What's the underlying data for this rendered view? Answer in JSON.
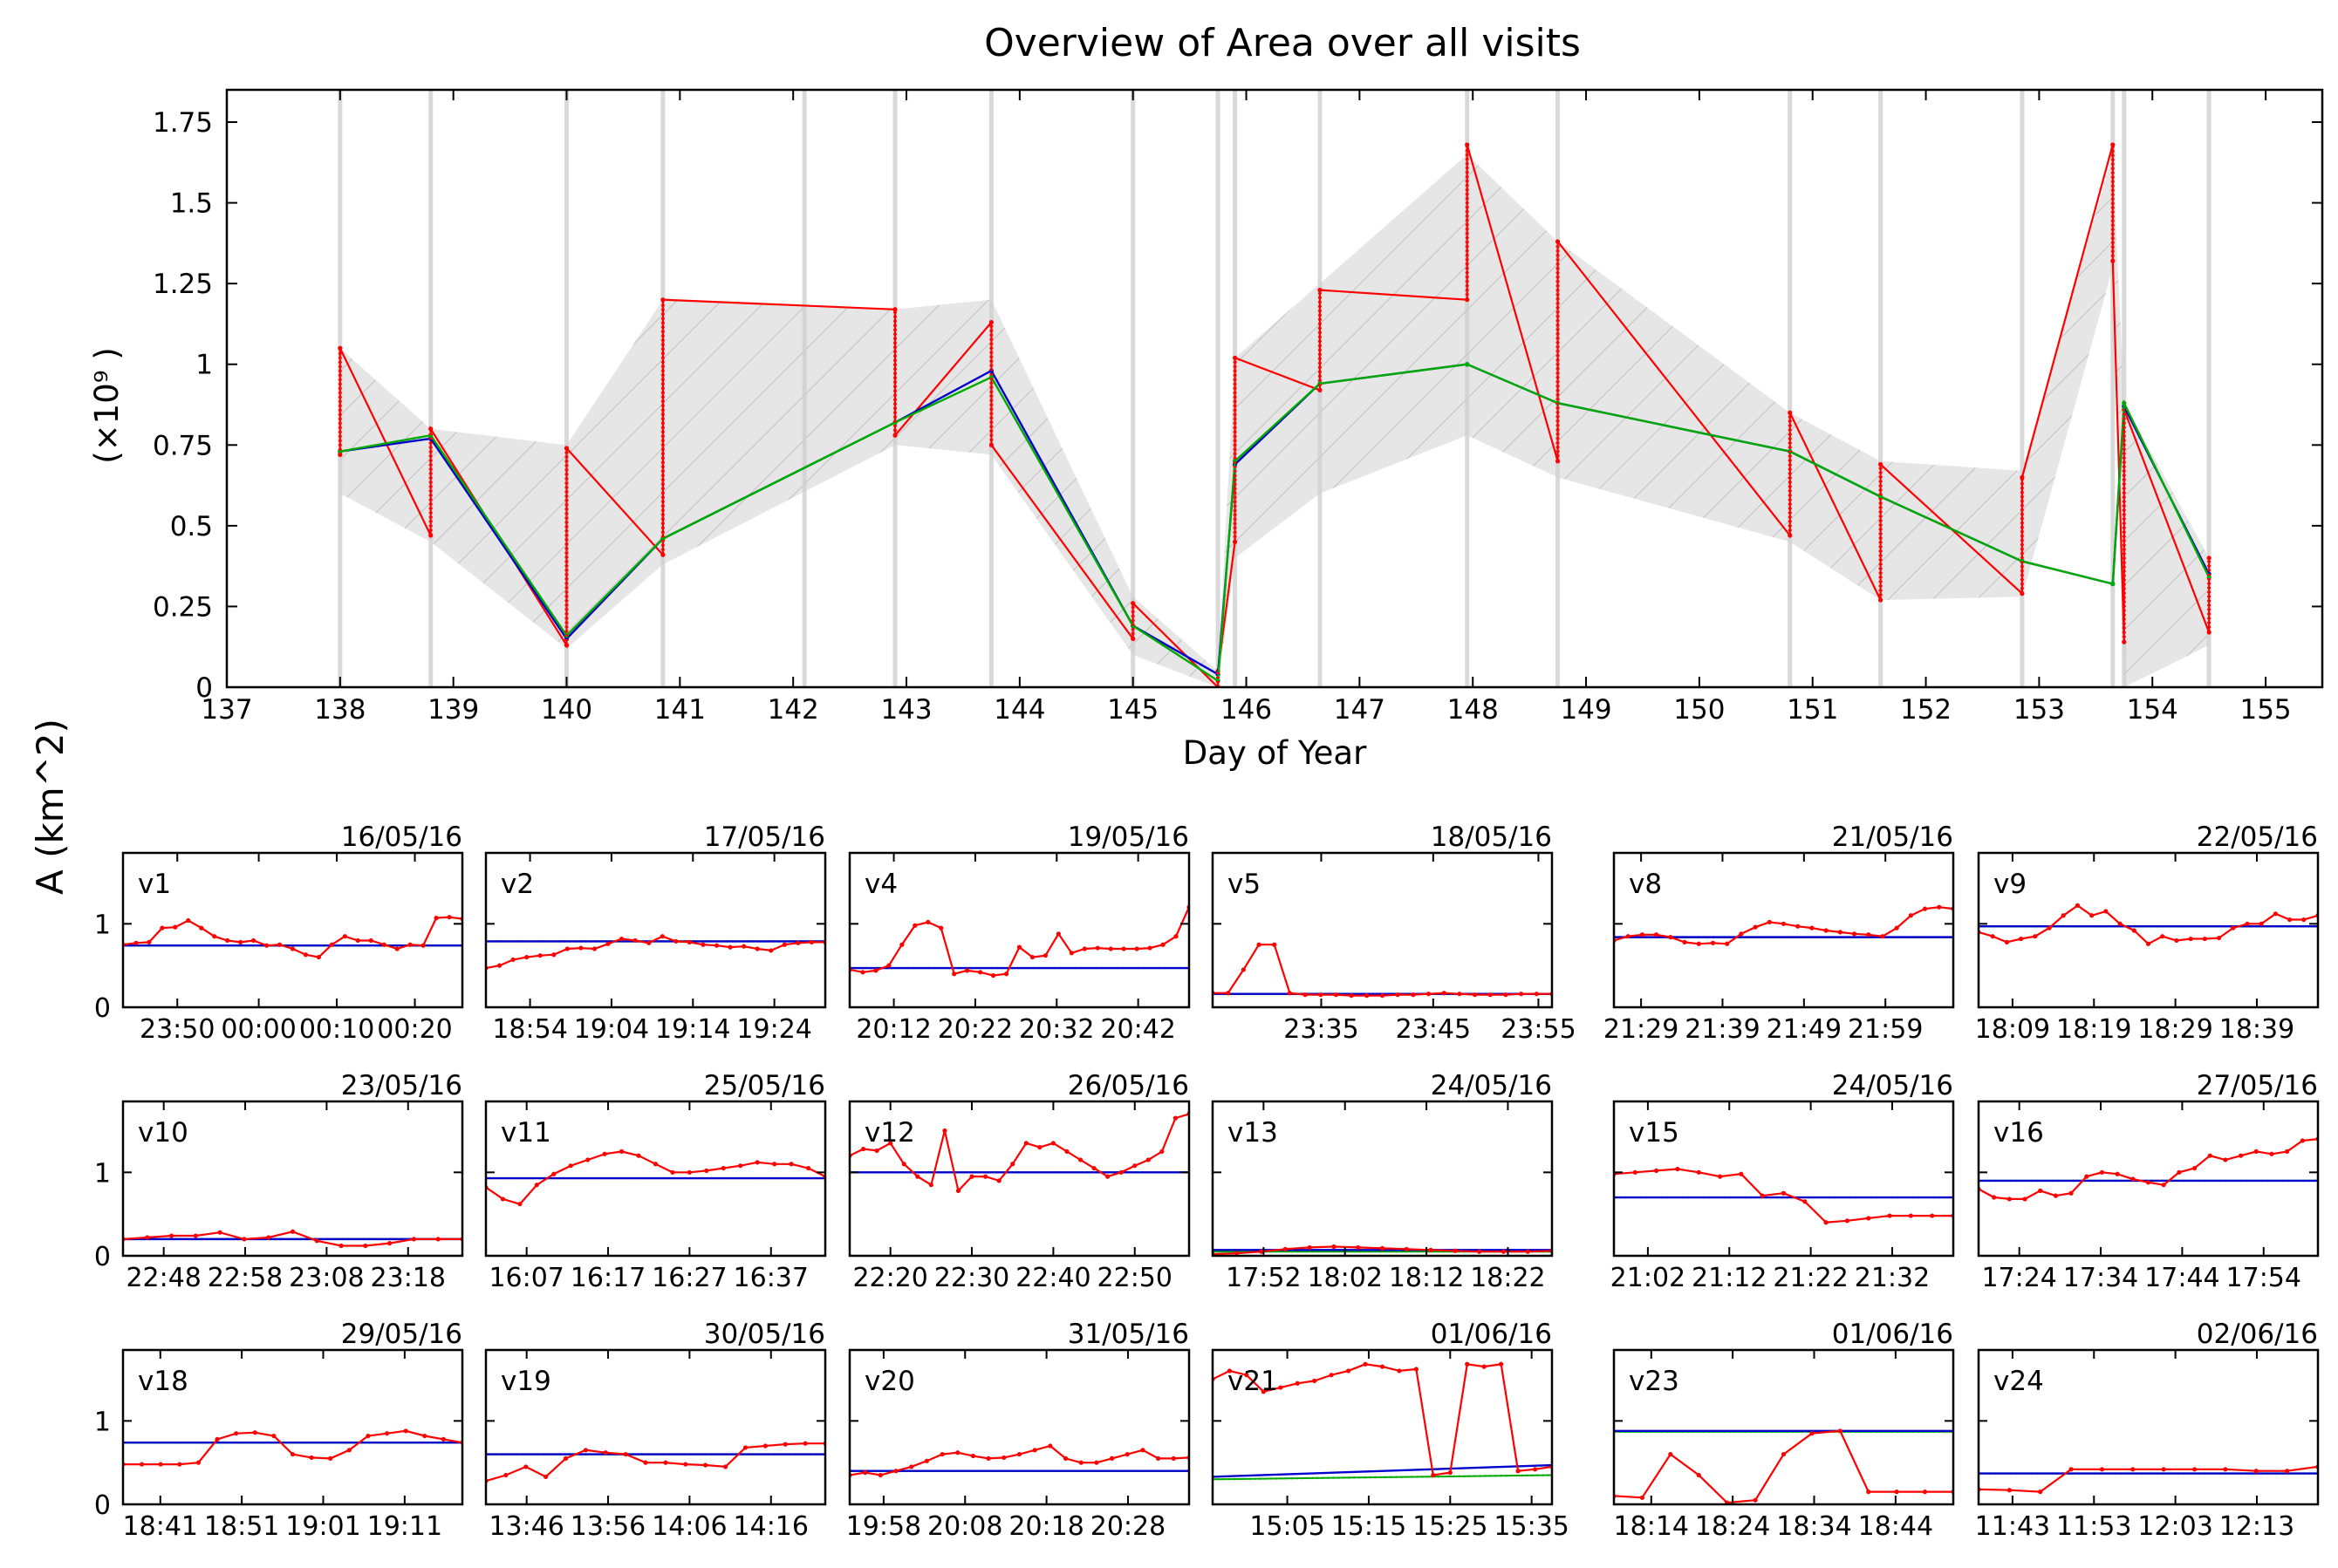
{
  "chart_data": [
    {
      "type": "line",
      "title": "Overview of Area over all visits",
      "xlabel": "Day of Year",
      "ylabel": "A (km^2)",
      "y_multiplier_label": "(×10⁹ )",
      "xlim": [
        137,
        155.5
      ],
      "ylim": [
        0,
        1.85
      ],
      "x_ticks": [
        137,
        138,
        139,
        140,
        141,
        142,
        143,
        144,
        145,
        146,
        147,
        148,
        149,
        150,
        151,
        152,
        153,
        154,
        155
      ],
      "y_ticks": [
        0,
        0.25,
        0.5,
        0.75,
        1,
        1.25,
        1.5,
        1.75
      ],
      "y_tick_labels": [
        "0",
        "0.25",
        "0.5",
        "0.75",
        "1",
        "1.25",
        "1.5",
        "1.75"
      ],
      "visit_lines": [
        138.0,
        138.8,
        140.0,
        140.85,
        142.1,
        142.9,
        143.75,
        145.0,
        145.75,
        145.9,
        146.65,
        147.95,
        148.75,
        150.8,
        151.6,
        152.85,
        153.65,
        153.75,
        154.5
      ],
      "colors": {
        "observed": "#ff0000",
        "mean": "#0000cc",
        "model": "#00aa00",
        "envelope": "#e6e6e6",
        "visit_line": "#d0d0d0"
      },
      "envelope": {
        "x": [
          138.0,
          138.8,
          140.0,
          140.85,
          142.9,
          143.75,
          145.0,
          145.75,
          145.9,
          146.65,
          147.95,
          148.75,
          150.8,
          151.6,
          152.85,
          153.65,
          153.75,
          154.5
        ],
        "upper": [
          1.05,
          0.8,
          0.75,
          1.2,
          1.17,
          1.2,
          0.28,
          0.05,
          1.02,
          1.25,
          1.65,
          1.38,
          0.85,
          0.7,
          0.67,
          1.65,
          0.88,
          0.4
        ],
        "lower": [
          0.6,
          0.45,
          0.12,
          0.38,
          0.75,
          0.72,
          0.1,
          0.0,
          0.4,
          0.6,
          0.78,
          0.65,
          0.45,
          0.27,
          0.28,
          1.3,
          0.0,
          0.13
        ]
      },
      "series": [
        {
          "key": "observed",
          "x": [
            138.0,
            138.0,
            138.8,
            138.8,
            140.0,
            140.0,
            140.85,
            140.85,
            142.9,
            142.9,
            143.75,
            143.75,
            145.0,
            145.0,
            145.75,
            145.75,
            145.9,
            145.9,
            146.65,
            146.65,
            147.95,
            147.95,
            148.75,
            148.75,
            150.8,
            150.8,
            151.6,
            151.6,
            152.85,
            152.85,
            153.65,
            153.65,
            153.75,
            153.75,
            154.5,
            154.5
          ],
          "y": [
            0.72,
            1.05,
            0.47,
            0.8,
            0.13,
            0.74,
            0.41,
            1.2,
            1.17,
            0.78,
            1.13,
            0.75,
            0.15,
            0.26,
            0.0,
            0.05,
            0.45,
            1.02,
            0.92,
            1.23,
            1.2,
            1.68,
            0.7,
            1.38,
            0.47,
            0.85,
            0.27,
            0.69,
            0.29,
            0.65,
            1.68,
            1.32,
            0.14,
            0.86,
            0.17,
            0.4
          ]
        },
        {
          "key": "mean",
          "x": [
            138.0,
            138.8,
            140.0,
            140.85,
            142.9,
            143.75,
            145.0,
            145.75,
            145.9,
            146.65,
            147.95,
            148.75,
            150.8,
            151.6,
            152.85,
            153.65,
            153.75,
            154.5
          ],
          "y": [
            0.73,
            0.77,
            0.15,
            0.46,
            0.82,
            0.98,
            0.19,
            0.04,
            0.69,
            0.94,
            1.0,
            0.88,
            0.73,
            0.59,
            0.39,
            0.32,
            0.87,
            0.35
          ]
        },
        {
          "key": "model",
          "x": [
            138.0,
            138.8,
            140.0,
            140.85,
            142.9,
            143.75,
            145.0,
            145.75,
            145.9,
            146.65,
            147.95,
            148.75,
            150.8,
            151.6,
            152.85,
            153.65,
            153.75,
            154.5
          ],
          "y": [
            0.73,
            0.78,
            0.16,
            0.46,
            0.82,
            0.96,
            0.19,
            0.02,
            0.7,
            0.94,
            1.0,
            0.88,
            0.73,
            0.59,
            0.39,
            0.32,
            0.88,
            0.34
          ]
        }
      ]
    },
    {
      "type": "line",
      "panels": [
        {
          "label": "v1",
          "date": "16/05/16",
          "ticks": [
            "23:50",
            "00:00",
            "00:10",
            "00:20"
          ],
          "tick_pos": [
            0.16,
            0.4,
            0.63,
            0.86
          ],
          "mean": 0.74,
          "model": 0.74,
          "obs": [
            0.75,
            0.77,
            0.78,
            0.95,
            0.96,
            1.04,
            0.95,
            0.85,
            0.8,
            0.78,
            0.8,
            0.74,
            0.75,
            0.7,
            0.63,
            0.6,
            0.75,
            0.85,
            0.8,
            0.8,
            0.75,
            0.7,
            0.75,
            0.74,
            1.07,
            1.08,
            1.06
          ]
        },
        {
          "label": "v2",
          "date": "17/05/16",
          "ticks": [
            "18:54",
            "19:04",
            "19:14",
            "19:24"
          ],
          "tick_pos": [
            0.13,
            0.37,
            0.61,
            0.85
          ],
          "mean": 0.79,
          "model": 0.79,
          "obs": [
            0.47,
            0.5,
            0.57,
            0.6,
            0.62,
            0.63,
            0.7,
            0.71,
            0.7,
            0.76,
            0.82,
            0.8,
            0.77,
            0.85,
            0.79,
            0.78,
            0.75,
            0.74,
            0.72,
            0.73,
            0.7,
            0.68,
            0.75,
            0.77,
            0.78,
            0.78
          ]
        },
        {
          "label": "v4",
          "date": "19/05/16",
          "ticks": [
            "20:12",
            "20:22",
            "20:32",
            "20:42"
          ],
          "tick_pos": [
            0.13,
            0.37,
            0.61,
            0.85
          ],
          "mean": 0.47,
          "model": 0.47,
          "obs": [
            0.45,
            0.42,
            0.44,
            0.5,
            0.75,
            0.98,
            1.02,
            0.95,
            0.4,
            0.44,
            0.42,
            0.38,
            0.4,
            0.72,
            0.6,
            0.62,
            0.88,
            0.65,
            0.7,
            0.71,
            0.7,
            0.7,
            0.7,
            0.71,
            0.75,
            0.85,
            1.2
          ]
        },
        {
          "label": "v5",
          "date": "18/05/16",
          "ticks": [
            "23:35",
            "23:45",
            "23:55"
          ],
          "tick_pos": [
            0.32,
            0.65,
            0.96
          ],
          "mean": 0.16,
          "model": 0.16,
          "obs": [
            0.17,
            0.17,
            0.45,
            0.75,
            0.75,
            0.17,
            0.15,
            0.15,
            0.15,
            0.14,
            0.14,
            0.14,
            0.15,
            0.15,
            0.16,
            0.17,
            0.16,
            0.15,
            0.15,
            0.15,
            0.16,
            0.16,
            0.16
          ]
        },
        {
          "label": "v8",
          "date": "21/05/16",
          "ticks": [
            "21:29",
            "21:39",
            "21:49",
            "21:59"
          ],
          "tick_pos": [
            0.08,
            0.32,
            0.56,
            0.8
          ],
          "mean": 0.84,
          "model": 0.84,
          "obs": [
            0.8,
            0.85,
            0.87,
            0.87,
            0.84,
            0.78,
            0.76,
            0.77,
            0.76,
            0.88,
            0.96,
            1.02,
            1.0,
            0.97,
            0.95,
            0.92,
            0.9,
            0.88,
            0.87,
            0.85,
            0.95,
            1.1,
            1.18,
            1.2,
            1.18
          ]
        },
        {
          "label": "v9",
          "date": "22/05/16",
          "ticks": [
            "18:09",
            "18:19",
            "18:29",
            "18:39"
          ],
          "tick_pos": [
            0.1,
            0.34,
            0.58,
            0.82
          ],
          "mean": 0.97,
          "model": 0.97,
          "obs": [
            0.9,
            0.85,
            0.78,
            0.82,
            0.85,
            0.95,
            1.1,
            1.22,
            1.1,
            1.15,
            1.0,
            0.92,
            0.76,
            0.85,
            0.8,
            0.82,
            0.82,
            0.83,
            0.95,
            1.0,
            1.0,
            1.12,
            1.05,
            1.05,
            1.1
          ]
        },
        {
          "label": "v10",
          "date": "23/05/16",
          "ticks": [
            "22:48",
            "22:58",
            "23:08",
            "23:18"
          ],
          "tick_pos": [
            0.12,
            0.36,
            0.6,
            0.84
          ],
          "mean": 0.2,
          "model": 0.2,
          "obs": [
            0.2,
            0.22,
            0.24,
            0.24,
            0.28,
            0.2,
            0.22,
            0.29,
            0.18,
            0.12,
            0.12,
            0.15,
            0.2,
            0.2,
            0.2
          ]
        },
        {
          "label": "v11",
          "date": "25/05/16",
          "ticks": [
            "16:07",
            "16:17",
            "16:27",
            "16:37"
          ],
          "tick_pos": [
            0.12,
            0.36,
            0.6,
            0.84
          ],
          "mean": 0.93,
          "model": 0.93,
          "obs": [
            0.82,
            0.68,
            0.62,
            0.85,
            0.98,
            1.08,
            1.15,
            1.22,
            1.25,
            1.2,
            1.1,
            1.0,
            1.0,
            1.02,
            1.05,
            1.08,
            1.12,
            1.1,
            1.1,
            1.05,
            0.95
          ]
        },
        {
          "label": "v12",
          "date": "26/05/16",
          "ticks": [
            "22:20",
            "22:30",
            "22:40",
            "22:50"
          ],
          "tick_pos": [
            0.12,
            0.36,
            0.6,
            0.84
          ],
          "mean": 1.0,
          "model": 1.0,
          "obs": [
            1.2,
            1.28,
            1.26,
            1.35,
            1.1,
            0.95,
            0.85,
            1.5,
            0.78,
            0.95,
            0.95,
            0.9,
            1.1,
            1.35,
            1.3,
            1.35,
            1.25,
            1.15,
            1.05,
            0.95,
            1.0,
            1.08,
            1.15,
            1.25,
            1.65,
            1.7
          ]
        },
        {
          "label": "v13",
          "date": "24/05/16",
          "ticks": [
            "17:52",
            "18:02",
            "18:12",
            "18:22"
          ],
          "tick_pos": [
            0.15,
            0.39,
            0.63,
            0.87
          ],
          "mean": 0.07,
          "model": 0.05,
          "obs": [
            0.02,
            0.03,
            0.05,
            0.08,
            0.1,
            0.11,
            0.1,
            0.09,
            0.08,
            0.07,
            0.06,
            0.05,
            0.05,
            0.05,
            0.06
          ]
        },
        {
          "label": "v15",
          "date": "24/05/16",
          "ticks": [
            "21:02",
            "21:12",
            "21:22",
            "21:32"
          ],
          "tick_pos": [
            0.1,
            0.34,
            0.58,
            0.82
          ],
          "mean": 0.7,
          "model": 0.7,
          "obs": [
            0.98,
            1.0,
            1.02,
            1.04,
            1.0,
            0.95,
            0.98,
            0.72,
            0.75,
            0.65,
            0.4,
            0.42,
            0.45,
            0.48,
            0.48,
            0.48,
            0.48
          ]
        },
        {
          "label": "v16",
          "date": "27/05/16",
          "ticks": [
            "17:24",
            "17:34",
            "17:44",
            "17:54"
          ],
          "tick_pos": [
            0.12,
            0.36,
            0.6,
            0.84
          ],
          "mean": 0.9,
          "model": 0.9,
          "obs": [
            0.8,
            0.7,
            0.68,
            0.68,
            0.78,
            0.72,
            0.75,
            0.95,
            1.0,
            0.98,
            0.92,
            0.88,
            0.85,
            1.0,
            1.05,
            1.2,
            1.15,
            1.2,
            1.25,
            1.22,
            1.25,
            1.38,
            1.4
          ]
        },
        {
          "label": "v18",
          "date": "29/05/16",
          "ticks": [
            "18:41",
            "18:51",
            "19:01",
            "19:11"
          ],
          "tick_pos": [
            0.11,
            0.35,
            0.59,
            0.83
          ],
          "mean": 0.74,
          "model": 0.74,
          "obs": [
            0.48,
            0.48,
            0.48,
            0.48,
            0.5,
            0.78,
            0.85,
            0.86,
            0.82,
            0.6,
            0.56,
            0.55,
            0.65,
            0.82,
            0.85,
            0.88,
            0.82,
            0.78,
            0.74
          ]
        },
        {
          "label": "v19",
          "date": "30/05/16",
          "ticks": [
            "13:46",
            "13:56",
            "14:06",
            "14:16"
          ],
          "tick_pos": [
            0.12,
            0.36,
            0.6,
            0.84
          ],
          "mean": 0.6,
          "model": 0.6,
          "obs": [
            0.28,
            0.35,
            0.45,
            0.33,
            0.55,
            0.65,
            0.62,
            0.6,
            0.5,
            0.5,
            0.48,
            0.47,
            0.45,
            0.68,
            0.7,
            0.72,
            0.73,
            0.73
          ]
        },
        {
          "label": "v20",
          "date": "31/05/16",
          "ticks": [
            "19:58",
            "20:08",
            "20:18",
            "20:28"
          ],
          "tick_pos": [
            0.1,
            0.34,
            0.58,
            0.82
          ],
          "mean": 0.4,
          "model": 0.4,
          "obs": [
            0.35,
            0.38,
            0.35,
            0.4,
            0.45,
            0.52,
            0.6,
            0.62,
            0.58,
            0.55,
            0.56,
            0.6,
            0.65,
            0.7,
            0.55,
            0.5,
            0.5,
            0.55,
            0.6,
            0.65,
            0.55,
            0.55,
            0.56
          ]
        },
        {
          "label": "v21",
          "date": "01/06/16",
          "ticks": [
            "15:05",
            "15:15",
            "15:25",
            "15:35"
          ],
          "tick_pos": [
            0.22,
            0.46,
            0.7,
            0.94
          ],
          "mean": 0.33,
          "mean_end": 0.47,
          "model": 0.3,
          "model_end": 0.35,
          "obs": [
            1.5,
            1.6,
            1.55,
            1.35,
            1.4,
            1.45,
            1.48,
            1.55,
            1.6,
            1.68,
            1.65,
            1.6,
            1.62,
            0.35,
            0.38,
            1.68,
            1.65,
            1.68,
            0.4,
            0.42,
            0.45
          ]
        },
        {
          "label": "v23",
          "date": "01/06/16",
          "ticks": [
            "18:14",
            "18:24",
            "18:34",
            "18:44"
          ],
          "tick_pos": [
            0.11,
            0.35,
            0.59,
            0.83
          ],
          "mean": 0.88,
          "model": 0.87,
          "obs": [
            0.1,
            0.08,
            0.6,
            0.35,
            0.02,
            0.05,
            0.6,
            0.85,
            0.88,
            0.15,
            0.15,
            0.15,
            0.15
          ]
        },
        {
          "label": "v24",
          "date": "02/06/16",
          "ticks": [
            "11:43",
            "11:53",
            "12:03",
            "12:13"
          ],
          "tick_pos": [
            0.1,
            0.34,
            0.58,
            0.82
          ],
          "mean": 0.37,
          "model": 0.37,
          "obs": [
            0.18,
            0.17,
            0.15,
            0.42,
            0.42,
            0.42,
            0.42,
            0.42,
            0.42,
            0.4,
            0.4,
            0.45
          ]
        }
      ],
      "ylim": [
        0,
        1.85
      ],
      "y_ticks": [
        0,
        1
      ],
      "y_tick_labels": [
        "0",
        "1"
      ]
    }
  ]
}
